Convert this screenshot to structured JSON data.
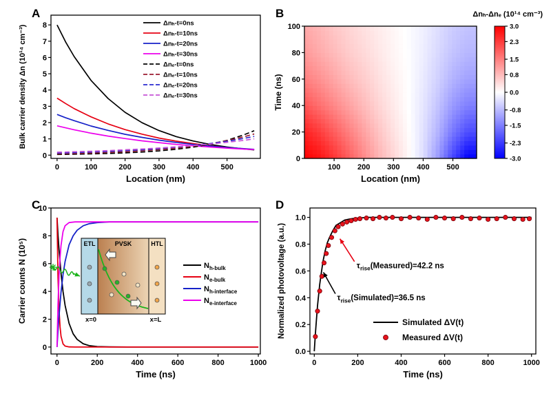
{
  "panels": {
    "a": {
      "label": "A"
    },
    "b": {
      "label": "B"
    },
    "c": {
      "label": "C"
    },
    "d": {
      "label": "D"
    }
  },
  "chart_data": {
    "a": {
      "type": "line",
      "xlabel": "Location (nm)",
      "ylabel": "Bulk carrier density Δn (10¹⁴ cm⁻³)",
      "xlim": [
        -18,
        598
      ],
      "ylim": [
        -0.2,
        8.6
      ],
      "xticks": [
        0,
        100,
        200,
        300,
        400,
        500
      ],
      "yticks": [
        0,
        1,
        2,
        3,
        4,
        5,
        6,
        7,
        8
      ],
      "x": [
        0,
        25,
        50,
        100,
        150,
        200,
        250,
        300,
        350,
        400,
        450,
        500,
        550,
        580
      ],
      "series": [
        {
          "label": "Δnₕ-t=0ns",
          "color": "#000000",
          "dash": false,
          "y": [
            8.0,
            6.96,
            6.06,
            4.59,
            3.48,
            2.63,
            1.99,
            1.51,
            1.14,
            0.87,
            0.66,
            0.5,
            0.38,
            0.32
          ]
        },
        {
          "label": "Δnₕ-t=10ns",
          "color": "#e60012",
          "dash": false,
          "y": [
            3.5,
            3.17,
            2.86,
            2.35,
            1.92,
            1.57,
            1.29,
            1.05,
            0.86,
            0.71,
            0.58,
            0.47,
            0.39,
            0.34
          ]
        },
        {
          "label": "Δnₕ-t=20ns",
          "color": "#1621c8",
          "dash": false,
          "y": [
            2.5,
            2.3,
            2.12,
            1.79,
            1.52,
            1.28,
            1.09,
            0.92,
            0.78,
            0.66,
            0.56,
            0.47,
            0.4,
            0.36
          ]
        },
        {
          "label": "Δnₕ-t=30ns",
          "color": "#ec00ec",
          "dash": false,
          "y": [
            1.8,
            1.68,
            1.56,
            1.35,
            1.17,
            1.02,
            0.88,
            0.77,
            0.66,
            0.58,
            0.5,
            0.43,
            0.37,
            0.34
          ]
        },
        {
          "label": "Δnₑ-t=0ns",
          "color": "#000000",
          "dash": true,
          "y": [
            0.04,
            0.05,
            0.06,
            0.08,
            0.1,
            0.14,
            0.19,
            0.26,
            0.36,
            0.49,
            0.67,
            0.91,
            1.25,
            1.5
          ]
        },
        {
          "label": "Δnₑ-t=10ns",
          "color": "#9b1b30",
          "dash": true,
          "y": [
            0.08,
            0.09,
            0.1,
            0.13,
            0.17,
            0.21,
            0.27,
            0.34,
            0.43,
            0.55,
            0.7,
            0.89,
            1.13,
            1.3
          ]
        },
        {
          "label": "Δnₑ-t=20ns",
          "color": "#2a2ad0",
          "dash": true,
          "y": [
            0.13,
            0.14,
            0.16,
            0.19,
            0.23,
            0.28,
            0.33,
            0.4,
            0.49,
            0.59,
            0.71,
            0.85,
            1.03,
            1.15
          ]
        },
        {
          "label": "Δnₑ-t=30ns",
          "color": "#c653d6",
          "dash": true,
          "y": [
            0.18,
            0.19,
            0.21,
            0.24,
            0.28,
            0.33,
            0.38,
            0.44,
            0.51,
            0.59,
            0.68,
            0.79,
            0.91,
            1.0
          ]
        }
      ]
    },
    "b": {
      "type": "heatmap",
      "title": "Δnₕ-Δnₑ (10¹⁴ cm⁻³)",
      "xlabel": "Location (nm)",
      "ylabel": "Time (ns)",
      "xlim": [
        0,
        580
      ],
      "ylim": [
        0,
        100
      ],
      "xticks": [
        100,
        200,
        300,
        400,
        500
      ],
      "yticks": [
        0,
        20,
        40,
        60,
        80,
        100
      ],
      "vmin": -3,
      "vmax": 3,
      "locations": [
        0,
        50,
        100,
        150,
        200,
        250,
        300,
        350,
        400,
        450,
        500,
        550
      ],
      "times": [
        0,
        20,
        40,
        60,
        80,
        100
      ],
      "values": [
        [
          3.0,
          2.8,
          2.4,
          1.9,
          1.4,
          0.9,
          0.5,
          0.1,
          -0.4,
          -1.2,
          -2.2,
          -3.0
        ],
        [
          2.6,
          2.3,
          1.9,
          1.5,
          1.1,
          0.7,
          0.35,
          0.05,
          -0.35,
          -0.9,
          -1.6,
          -2.1
        ],
        [
          2.0,
          1.7,
          1.4,
          1.1,
          0.8,
          0.5,
          0.25,
          0.0,
          -0.3,
          -0.7,
          -1.2,
          -1.5
        ],
        [
          1.5,
          1.3,
          1.05,
          0.8,
          0.6,
          0.38,
          0.18,
          0.0,
          -0.25,
          -0.55,
          -0.9,
          -1.1
        ],
        [
          1.2,
          1.0,
          0.8,
          0.6,
          0.45,
          0.28,
          0.12,
          -0.02,
          -0.2,
          -0.45,
          -0.7,
          -0.85
        ],
        [
          1.0,
          0.85,
          0.65,
          0.5,
          0.36,
          0.22,
          0.1,
          -0.03,
          -0.18,
          -0.38,
          -0.6,
          -0.7
        ]
      ],
      "colorbar_ticks": [
        "3.0",
        "2.3",
        "1.5",
        "0.8",
        "0.0",
        "-0.8",
        "-1.5",
        "-2.3",
        "-3.0"
      ]
    },
    "c": {
      "type": "line",
      "xlabel": "Time (ns)",
      "ylabel": "Carrier counts N (10⁵)",
      "xlim": [
        -30,
        1010
      ],
      "ylim": [
        -0.5,
        10
      ],
      "xticks": [
        0,
        200,
        400,
        600,
        800,
        1000
      ],
      "yticks": [
        0,
        2,
        4,
        6,
        8,
        10
      ],
      "series": [
        {
          "label_main": "N",
          "label_sub": "h-bulk",
          "color": "#000000",
          "x": [
            0,
            5,
            10,
            20,
            30,
            40,
            60,
            80,
            100,
            130,
            160,
            200,
            260,
            350,
            500,
            1000
          ],
          "y": [
            9.3,
            8.06,
            7.0,
            5.3,
            4.0,
            3.0,
            1.7,
            0.95,
            0.55,
            0.24,
            0.1,
            0.03,
            0.01,
            0,
            0,
            0
          ]
        },
        {
          "label_main": "N",
          "label_sub": "e-bulk",
          "color": "#e60012",
          "x": [
            0,
            5,
            10,
            15,
            20,
            30,
            40,
            60,
            90,
            150,
            300,
            1000
          ],
          "y": [
            9.3,
            5.0,
            2.7,
            1.45,
            0.78,
            0.23,
            0.07,
            0.01,
            0,
            0,
            0,
            0
          ]
        },
        {
          "label_main": "N",
          "label_sub": "h-interface",
          "color": "#1621c8",
          "x": [
            0,
            5,
            10,
            20,
            30,
            40,
            60,
            80,
            100,
            130,
            160,
            200,
            260,
            350,
            500,
            1000
          ],
          "y": [
            0,
            1.2,
            2.25,
            3.95,
            5.2,
            6.15,
            7.35,
            8.0,
            8.4,
            8.72,
            8.87,
            8.95,
            9.0,
            9.0,
            9.0,
            9.0
          ]
        },
        {
          "label_main": "N",
          "label_sub": "e-interface",
          "color": "#ec00ec",
          "x": [
            0,
            5,
            10,
            15,
            20,
            30,
            40,
            60,
            90,
            150,
            300,
            1000
          ],
          "y": [
            0,
            3.1,
            5.1,
            6.45,
            7.3,
            8.3,
            8.72,
            8.95,
            9.0,
            9.0,
            9.0,
            9.0
          ]
        }
      ],
      "inset": {
        "labels": [
          "ETL",
          "PVSK",
          "HTL"
        ],
        "x0_label": "x=0",
        "xl_label": "x=L",
        "etl_color": "#b5d9e8",
        "pvsk_left": "#bb8050",
        "pvsk_right": "#ecd4b4",
        "htl_color": "#f4e0c2",
        "green": "#1db31d",
        "dots": [
          [
            34,
            44,
            "#28b428"
          ],
          [
            52,
            64,
            "#28b428"
          ],
          [
            68,
            84,
            "#28b428"
          ],
          [
            44,
            82,
            "#f2e3c4"
          ],
          [
            62,
            52,
            "#f2e3c4"
          ],
          [
            82,
            68,
            "#f2e3c4"
          ],
          [
            12,
            42,
            "#9aa8b0"
          ],
          [
            12,
            66,
            "#9aa8b0"
          ],
          [
            12,
            90,
            "#9aa8b0"
          ],
          [
            110,
            42,
            "#f0a449"
          ],
          [
            110,
            66,
            "#f0a449"
          ],
          [
            110,
            90,
            "#f0a449"
          ]
        ]
      }
    },
    "d": {
      "type": "line+scatter",
      "xlabel": "Time (ns)",
      "ylabel": "Normalized photovoltage (a.u.)",
      "xlim": [
        -20,
        1020
      ],
      "ylim": [
        -0.02,
        1.07
      ],
      "xticks": [
        0,
        200,
        400,
        600,
        800,
        1000
      ],
      "yticks": [
        "0.0",
        "0.2",
        "0.4",
        "0.6",
        "0.8",
        "1.0"
      ],
      "line": {
        "legend": "Simulated ΔV(t)",
        "color": "#000000",
        "x": [
          0,
          5,
          10,
          15,
          20,
          25,
          30,
          40,
          50,
          60,
          70,
          85,
          100,
          120,
          140,
          170,
          200,
          250,
          300,
          400,
          500,
          600,
          700,
          800,
          900,
          1000
        ],
        "y": [
          0,
          0.13,
          0.24,
          0.34,
          0.42,
          0.5,
          0.56,
          0.67,
          0.75,
          0.81,
          0.85,
          0.9,
          0.94,
          0.96,
          0.98,
          0.99,
          0.995,
          1.0,
          1.0,
          1.0,
          1.0,
          1.0,
          1.0,
          1.0,
          1.0,
          1.0
        ]
      },
      "scatter": {
        "legend": "Measured ΔV(t)",
        "color": "#e8131c",
        "edge": "#7d030b",
        "x": [
          5,
          15,
          25,
          35,
          45,
          55,
          65,
          80,
          95,
          110,
          130,
          150,
          170,
          190,
          210,
          240,
          270,
          300,
          330,
          360,
          400,
          440,
          480,
          520,
          560,
          600,
          640,
          680,
          720,
          760,
          800,
          840,
          880,
          920,
          960,
          990
        ],
        "y": [
          0.11,
          0.3,
          0.45,
          0.56,
          0.66,
          0.73,
          0.79,
          0.85,
          0.9,
          0.93,
          0.95,
          0.965,
          0.975,
          0.985,
          0.99,
          0.995,
          0.99,
          1.0,
          0.995,
          1.0,
          0.99,
          1.0,
          0.995,
          0.985,
          1.0,
          0.995,
          0.99,
          1.0,
          0.99,
          0.995,
          0.985,
          0.99,
          1.0,
          0.99,
          0.985,
          0.99
        ]
      },
      "annotations": [
        {
          "pre": "τ",
          "sub": "rise",
          "text": "(Measured)=42.2 ns",
          "tx": 195,
          "ty": 0.62,
          "ax1": 185,
          "ay1": 0.67,
          "ax2": 118,
          "ay2": 0.84,
          "arrow_color": "#e60012"
        },
        {
          "pre": "τ",
          "sub": "rise",
          "text": "(Simulated)=36.5 ns",
          "tx": 105,
          "ty": 0.38,
          "ax1": 97,
          "ay1": 0.43,
          "ax2": 42,
          "ay2": 0.59,
          "arrow_color": "#000000"
        }
      ]
    }
  }
}
